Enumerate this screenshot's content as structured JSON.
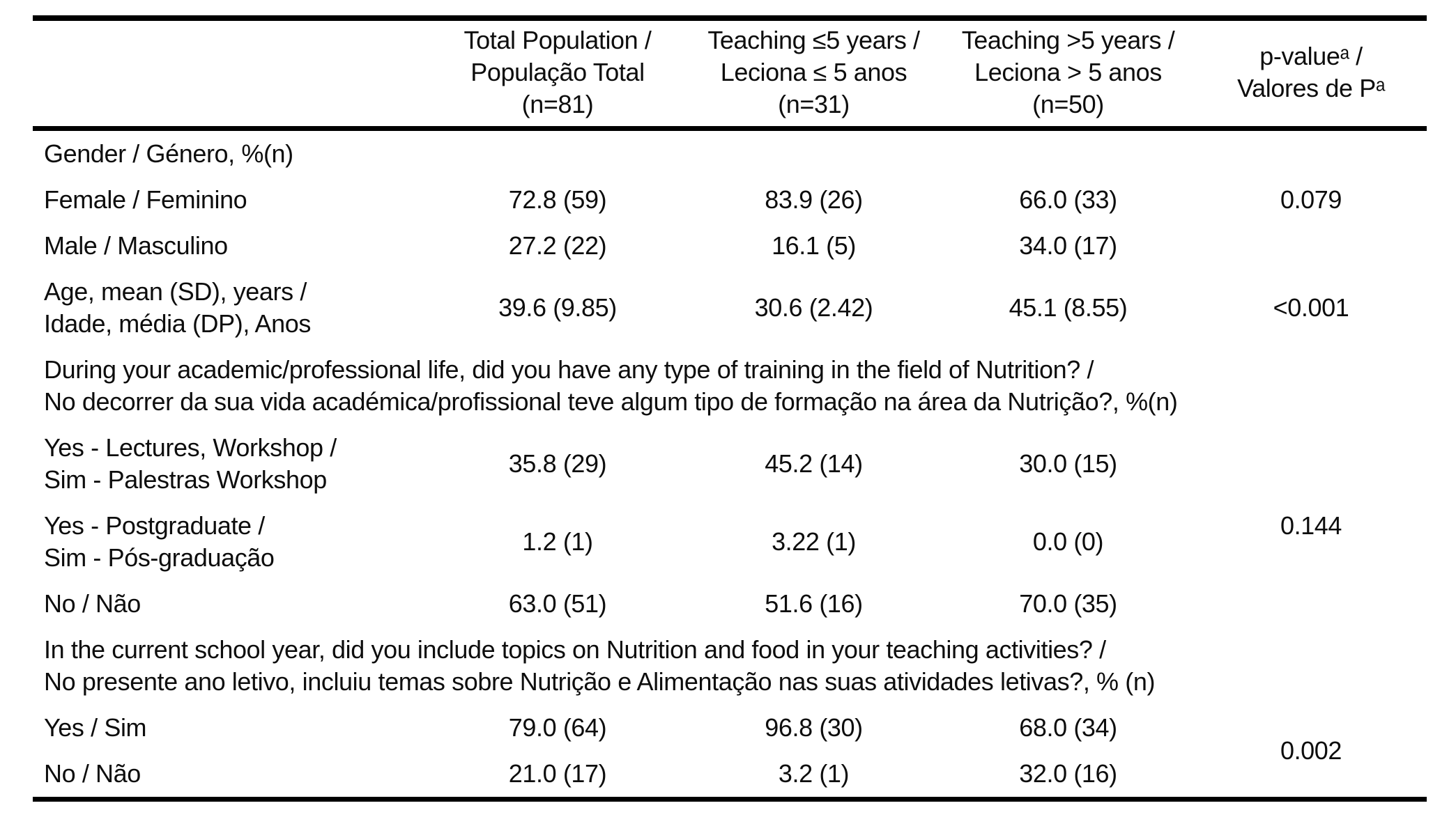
{
  "colors": {
    "background": "#ffffff",
    "text": "#0d0d0d",
    "rule": "#000000"
  },
  "table": {
    "header": {
      "label_col": "",
      "total": "Total Population /\nPopulação Total\n(n=81)",
      "teaching_le5": "Teaching ≤5 years /\nLeciona ≤ 5 anos\n(n=31)",
      "teaching_gt5": "Teaching >5 years /\nLeciona > 5 anos\n(n=50)",
      "p_value": "p-valueᵃ /\nValores de Pᵃ"
    },
    "rows": [
      {
        "type": "section",
        "label": "Gender / Género, %(n)"
      },
      {
        "type": "data",
        "label": "Female / Feminino",
        "total": "72.8 (59)",
        "le5": "83.9 (26)",
        "gt5": "66.0 (33)",
        "p": "0.079"
      },
      {
        "type": "data",
        "label": "Male / Masculino",
        "total": "27.2 (22)",
        "le5": "16.1 (5)",
        "gt5": "34.0 (17)",
        "p": ""
      },
      {
        "type": "data",
        "label": "Age, mean (SD), years /\nIdade, média (DP), Anos",
        "total": "39.6 (9.85)",
        "le5": "30.6 (2.42)",
        "gt5": "45.1 (8.55)",
        "p": "<0.001"
      },
      {
        "type": "section",
        "label": "During your academic/professional life, did you have any type of training in the field of Nutrition? /\nNo decorrer da sua vida académica/profissional teve algum tipo de formação na área da Nutrição?, %(n)"
      },
      {
        "type": "data",
        "label": "Yes - Lectures, Workshop /\nSim - Palestras Workshop",
        "total": "35.8 (29)",
        "le5": "45.2 (14)",
        "gt5": "30.0 (15)",
        "p": "0.144"
      },
      {
        "type": "data",
        "label": "Yes - Postgraduate /\nSim - Pós-graduação",
        "total": "1.2 (1)",
        "le5": "3.22 (1)",
        "gt5": "0.0 (0)"
      },
      {
        "type": "data",
        "label": "No / Não",
        "total": "63.0 (51)",
        "le5": "51.6 (16)",
        "gt5": "70.0 (35)"
      },
      {
        "type": "section",
        "label": "In the current school year, did you include topics on Nutrition and food in your teaching activities? /\nNo presente ano letivo, incluiu temas sobre Nutrição e Alimentação nas suas atividades letivas?, % (n)"
      },
      {
        "type": "data",
        "label": "Yes / Sim",
        "total": "79.0 (64)",
        "le5": "96.8 (30)",
        "gt5": "68.0 (34)",
        "p": "0.002"
      },
      {
        "type": "data",
        "label": "No / Não",
        "total": "21.0 (17)",
        "le5": "3.2 (1)",
        "gt5": "32.0 (16)"
      }
    ]
  }
}
